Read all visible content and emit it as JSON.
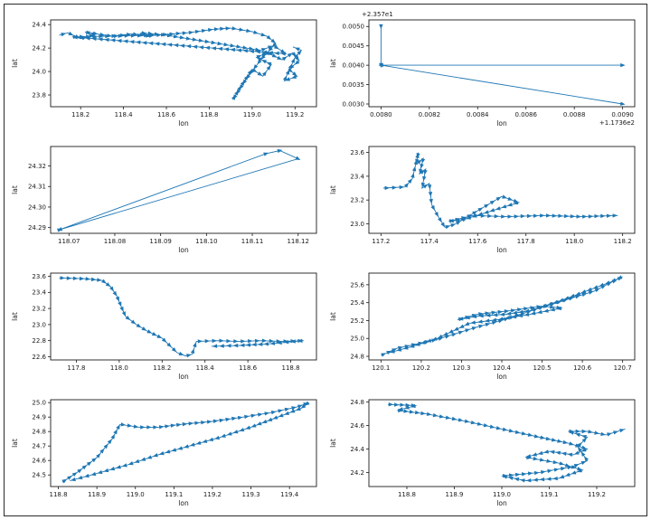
{
  "figure": {
    "background": "#ffffff",
    "border_color": "#2a2a2a",
    "accent_color": "#1f77b4",
    "text_color": "#1a1a1a"
  },
  "chart_data": [
    {
      "type": "line",
      "title": "",
      "xlabel": "lon",
      "ylabel": "lat",
      "xlim": [
        118.06,
        119.3
      ],
      "ylim": [
        23.7,
        24.44
      ],
      "xticks": [
        118.2,
        118.4,
        118.6,
        118.8,
        119.0,
        119.2
      ],
      "xtick_labels": [
        "118.2",
        "118.4",
        "118.6",
        "118.8",
        "119.0",
        "119.2"
      ],
      "yticks": [
        23.8,
        24.0,
        24.2,
        24.4
      ],
      "ytick_labels": [
        "23.8",
        "24.0",
        "24.2",
        "24.4"
      ],
      "x_offset_text": "",
      "y_offset_text": "",
      "marker_mode": "dense",
      "points": [
        [
          118.1,
          24.31
        ],
        [
          118.14,
          24.33
        ],
        [
          118.2,
          24.28
        ],
        [
          118.27,
          24.32
        ],
        [
          118.22,
          24.335
        ],
        [
          118.35,
          24.3
        ],
        [
          118.44,
          24.32
        ],
        [
          118.53,
          24.3
        ],
        [
          118.48,
          24.33
        ],
        [
          118.6,
          24.31
        ],
        [
          119.04,
          24.18
        ],
        [
          119.1,
          24.22
        ],
        [
          119.16,
          24.15
        ],
        [
          118.16,
          24.295
        ],
        [
          118.55,
          24.31
        ],
        [
          118.7,
          24.33
        ],
        [
          118.82,
          24.36
        ],
        [
          118.9,
          24.37
        ],
        [
          119.0,
          24.34
        ],
        [
          119.07,
          24.3
        ],
        [
          119.11,
          24.24
        ],
        [
          119.04,
          24.1
        ],
        [
          118.97,
          23.93
        ],
        [
          118.91,
          23.76
        ],
        [
          118.95,
          23.88
        ],
        [
          119.0,
          24.02
        ],
        [
          119.05,
          23.96
        ],
        [
          119.09,
          24.06
        ],
        [
          119.02,
          24.12
        ],
        [
          119.07,
          24.16
        ],
        [
          119.14,
          24.1
        ],
        [
          119.19,
          24.16
        ],
        [
          119.22,
          24.09
        ],
        [
          119.17,
          24.02
        ],
        [
          119.21,
          23.96
        ],
        [
          119.15,
          23.92
        ],
        [
          119.2,
          24.12
        ],
        [
          119.23,
          24.18
        ],
        [
          119.19,
          24.21
        ]
      ]
    },
    {
      "type": "line",
      "title": "",
      "xlabel": "lon",
      "ylabel": "lat",
      "xlim": [
        0.00795,
        0.00905
      ],
      "ylim": [
        0.00293,
        0.00517
      ],
      "xticks": [
        0.008,
        0.0082,
        0.0084,
        0.0086,
        0.0088,
        0.009
      ],
      "xtick_labels": [
        "0.0080",
        "0.0082",
        "0.0084",
        "0.0086",
        "0.0088",
        "0.0090"
      ],
      "yticks": [
        0.003,
        0.0035,
        0.004,
        0.0045,
        0.005
      ],
      "ytick_labels": [
        "0.0030",
        "0.0035",
        "0.0040",
        "0.0045",
        "0.0050"
      ],
      "x_offset_text": "+1.1736e2",
      "y_offset_text": "+2.357e1",
      "marker_mode": "vertices",
      "points": [
        [
          0.008,
          0.005
        ],
        [
          0.008,
          0.004
        ],
        [
          0.009,
          0.004
        ],
        [
          0.008,
          0.004
        ],
        [
          0.009,
          0.003
        ]
      ]
    },
    {
      "type": "line",
      "title": "",
      "xlabel": "lon",
      "ylabel": "lat",
      "xlim": [
        118.066,
        118.124
      ],
      "ylim": [
        24.2872,
        24.3295
      ],
      "xticks": [
        118.07,
        118.08,
        118.09,
        118.1,
        118.11,
        118.12
      ],
      "xtick_labels": [
        "118.07",
        "118.08",
        "118.09",
        "118.10",
        "118.11",
        "118.12"
      ],
      "yticks": [
        24.29,
        24.3,
        24.31,
        24.32
      ],
      "ytick_labels": [
        "24.29",
        "24.30",
        "24.31",
        "24.32"
      ],
      "x_offset_text": "",
      "y_offset_text": "",
      "marker_mode": "vertices",
      "points": [
        [
          118.068,
          24.289
        ],
        [
          118.113,
          24.326
        ],
        [
          118.116,
          24.3275
        ],
        [
          118.12,
          24.3235
        ],
        [
          118.068,
          24.289
        ]
      ]
    },
    {
      "type": "line",
      "title": "",
      "xlabel": "lon",
      "ylabel": "lat",
      "xlim": [
        117.15,
        118.25
      ],
      "ylim": [
        22.92,
        23.65
      ],
      "xticks": [
        117.2,
        117.4,
        117.6,
        117.8,
        118.0,
        118.2
      ],
      "xtick_labels": [
        "117.2",
        "117.4",
        "117.6",
        "117.8",
        "118.0",
        "118.2"
      ],
      "yticks": [
        23.0,
        23.2,
        23.4,
        23.6
      ],
      "ytick_labels": [
        "23.0",
        "23.2",
        "23.4",
        "23.6"
      ],
      "x_offset_text": "",
      "y_offset_text": "",
      "marker_mode": "dense",
      "points": [
        [
          117.21,
          23.3
        ],
        [
          117.3,
          23.31
        ],
        [
          117.33,
          23.38
        ],
        [
          117.355,
          23.6
        ],
        [
          117.345,
          23.5
        ],
        [
          117.375,
          23.55
        ],
        [
          117.36,
          23.42
        ],
        [
          117.385,
          23.46
        ],
        [
          117.37,
          23.3
        ],
        [
          117.4,
          23.34
        ],
        [
          117.41,
          23.16
        ],
        [
          117.44,
          23.05
        ],
        [
          117.465,
          22.97
        ],
        [
          117.51,
          23.0
        ],
        [
          117.6,
          23.11
        ],
        [
          117.7,
          23.23
        ],
        [
          117.77,
          23.18
        ],
        [
          117.55,
          23.04
        ],
        [
          117.48,
          23.02
        ],
        [
          117.58,
          23.07
        ],
        [
          117.72,
          23.06
        ],
        [
          117.88,
          23.07
        ],
        [
          118.03,
          23.06
        ],
        [
          118.18,
          23.07
        ]
      ]
    },
    {
      "type": "line",
      "title": "",
      "xlabel": "lon",
      "ylabel": "lat",
      "xlim": [
        117.68,
        118.92
      ],
      "ylim": [
        22.56,
        23.64
      ],
      "xticks": [
        117.8,
        118.0,
        118.2,
        118.4,
        118.6,
        118.8
      ],
      "xtick_labels": [
        "117.8",
        "118.0",
        "118.2",
        "118.4",
        "118.6",
        "118.8"
      ],
      "yticks": [
        22.6,
        22.8,
        23.0,
        23.2,
        23.4,
        23.6
      ],
      "ytick_labels": [
        "22.6",
        "22.8",
        "23.0",
        "23.2",
        "23.4",
        "23.6"
      ],
      "x_offset_text": "",
      "y_offset_text": "",
      "marker_mode": "dense",
      "points": [
        [
          117.72,
          23.58
        ],
        [
          117.84,
          23.57
        ],
        [
          117.92,
          23.55
        ],
        [
          117.96,
          23.47
        ],
        [
          117.99,
          23.35
        ],
        [
          118.01,
          23.22
        ],
        [
          118.03,
          23.1
        ],
        [
          118.08,
          23.0
        ],
        [
          118.13,
          22.92
        ],
        [
          118.2,
          22.83
        ],
        [
          118.27,
          22.65
        ],
        [
          118.31,
          22.61
        ],
        [
          118.34,
          22.63
        ],
        [
          118.36,
          22.79
        ],
        [
          118.46,
          22.8
        ],
        [
          118.56,
          22.79
        ],
        [
          118.66,
          22.8
        ],
        [
          118.76,
          22.79
        ],
        [
          118.86,
          22.8
        ],
        [
          118.7,
          22.76
        ],
        [
          118.56,
          22.74
        ],
        [
          118.43,
          22.73
        ]
      ]
    },
    {
      "type": "line",
      "title": "",
      "xlabel": "lon",
      "ylabel": "lat",
      "xlim": [
        120.07,
        120.73
      ],
      "ylim": [
        24.76,
        25.73
      ],
      "xticks": [
        120.1,
        120.2,
        120.3,
        120.4,
        120.5,
        120.6,
        120.7
      ],
      "xtick_labels": [
        "120.1",
        "120.2",
        "120.3",
        "120.4",
        "120.5",
        "120.6",
        "120.7"
      ],
      "yticks": [
        24.8,
        25.0,
        25.2,
        25.4,
        25.6
      ],
      "ytick_labels": [
        "24.8",
        "25.0",
        "25.2",
        "25.4",
        "25.6"
      ],
      "x_offset_text": "",
      "y_offset_text": "",
      "marker_mode": "dense",
      "points": [
        [
          120.1,
          24.81
        ],
        [
          120.14,
          24.89
        ],
        [
          120.19,
          24.94
        ],
        [
          120.24,
          24.99
        ],
        [
          120.29,
          25.06
        ],
        [
          120.34,
          25.13
        ],
        [
          120.39,
          25.19
        ],
        [
          120.46,
          25.29
        ],
        [
          120.52,
          25.38
        ],
        [
          120.58,
          25.46
        ],
        [
          120.63,
          25.53
        ],
        [
          120.66,
          25.6
        ],
        [
          120.7,
          25.69
        ],
        [
          120.67,
          25.63
        ],
        [
          120.61,
          25.53
        ],
        [
          120.54,
          25.41
        ],
        [
          120.47,
          25.31
        ],
        [
          120.41,
          25.27
        ],
        [
          120.34,
          25.25
        ],
        [
          120.29,
          25.21
        ],
        [
          120.34,
          25.27
        ],
        [
          120.42,
          25.31
        ],
        [
          120.5,
          25.36
        ],
        [
          120.55,
          25.34
        ],
        [
          120.47,
          25.27
        ],
        [
          120.39,
          25.21
        ],
        [
          120.32,
          25.17
        ],
        [
          120.24,
          25.0
        ],
        [
          120.17,
          24.9
        ],
        [
          120.12,
          24.84
        ]
      ]
    },
    {
      "type": "line",
      "title": "",
      "xlabel": "lon",
      "ylabel": "lat",
      "xlim": [
        118.78,
        119.47
      ],
      "ylim": [
        24.42,
        25.02
      ],
      "xticks": [
        118.8,
        118.9,
        119.0,
        119.1,
        119.2,
        119.3,
        119.4
      ],
      "xtick_labels": [
        "118.8",
        "118.9",
        "119.0",
        "119.1",
        "119.2",
        "119.3",
        "119.4"
      ],
      "yticks": [
        24.5,
        24.6,
        24.7,
        24.8,
        24.9,
        25.0
      ],
      "ytick_labels": [
        "24.5",
        "24.6",
        "24.7",
        "24.8",
        "24.9",
        "25.0"
      ],
      "x_offset_text": "",
      "y_offset_text": "",
      "marker_mode": "dense",
      "points": [
        [
          118.81,
          24.45
        ],
        [
          118.85,
          24.52
        ],
        [
          118.9,
          24.62
        ],
        [
          118.94,
          24.75
        ],
        [
          118.96,
          24.85
        ],
        [
          119.01,
          24.83
        ],
        [
          119.06,
          24.83
        ],
        [
          119.12,
          24.85
        ],
        [
          119.2,
          24.87
        ],
        [
          119.28,
          24.9
        ],
        [
          119.35,
          24.93
        ],
        [
          119.42,
          24.97
        ],
        [
          119.45,
          25.0
        ],
        [
          119.43,
          24.96
        ],
        [
          119.37,
          24.9
        ],
        [
          119.3,
          24.83
        ],
        [
          119.22,
          24.76
        ],
        [
          119.14,
          24.7
        ],
        [
          119.06,
          24.64
        ],
        [
          118.98,
          24.57
        ],
        [
          118.9,
          24.51
        ],
        [
          118.83,
          24.46
        ]
      ]
    },
    {
      "type": "line",
      "title": "",
      "xlabel": "lon",
      "ylabel": "lat",
      "xlim": [
        118.72,
        119.28
      ],
      "ylim": [
        24.08,
        24.82
      ],
      "xticks": [
        118.8,
        118.9,
        119.0,
        119.1,
        119.2
      ],
      "xtick_labels": [
        "118.8",
        "118.9",
        "119.0",
        "119.1",
        "119.2"
      ],
      "yticks": [
        24.2,
        24.4,
        24.6,
        24.8
      ],
      "ytick_labels": [
        "24.2",
        "24.4",
        "24.6",
        "24.8"
      ],
      "x_offset_text": "",
      "y_offset_text": "",
      "marker_mode": "dense",
      "points": [
        [
          118.76,
          24.78
        ],
        [
          118.82,
          24.77
        ],
        [
          118.78,
          24.73
        ],
        [
          118.84,
          24.7
        ],
        [
          118.92,
          24.64
        ],
        [
          119.0,
          24.57
        ],
        [
          119.08,
          24.5
        ],
        [
          119.14,
          24.45
        ],
        [
          119.18,
          24.4
        ],
        [
          119.15,
          24.35
        ],
        [
          119.1,
          24.38
        ],
        [
          119.05,
          24.33
        ],
        [
          119.12,
          24.28
        ],
        [
          119.17,
          24.22
        ],
        [
          119.12,
          24.15
        ],
        [
          119.05,
          24.13
        ],
        [
          119.0,
          24.17
        ],
        [
          119.08,
          24.2
        ],
        [
          119.15,
          24.25
        ],
        [
          119.18,
          24.3
        ],
        [
          119.16,
          24.42
        ],
        [
          119.18,
          24.5
        ],
        [
          119.14,
          24.55
        ],
        [
          119.18,
          24.55
        ],
        [
          119.22,
          24.52
        ],
        [
          119.26,
          24.57
        ]
      ]
    }
  ]
}
